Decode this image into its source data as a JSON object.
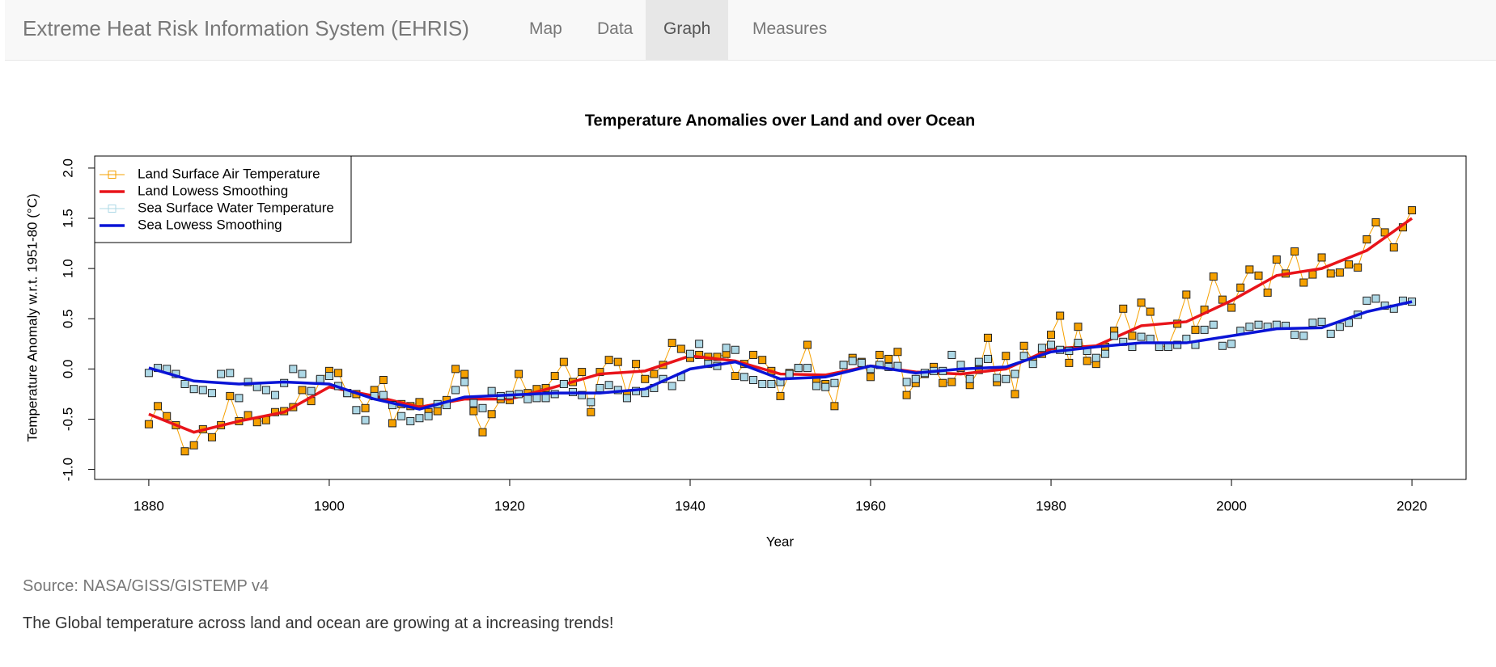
{
  "header": {
    "title": "Extreme Heat Risk Information System (EHRIS)",
    "nav": [
      "Map",
      "Data",
      "Graph",
      "Measures"
    ],
    "active": 2
  },
  "chart_data": {
    "type": "line",
    "title": "Temperature Anomalies over Land and over Ocean",
    "xlabel": "Year",
    "ylabel": "Temperature Anomaly w.r.t. 1951-80 (°C)",
    "xlim": [
      1874,
      2026
    ],
    "ylim": [
      -1.1,
      2.12
    ],
    "xticks": [
      1880,
      1900,
      1920,
      1940,
      1960,
      1980,
      2000,
      2020
    ],
    "yticks": [
      {
        "value": -1,
        "label": "-1.0"
      },
      {
        "value": -0.5,
        "label": "-0.5"
      },
      {
        "value": 0,
        "label": "0.0"
      },
      {
        "value": 0.5,
        "label": "0.5"
      },
      {
        "value": 1,
        "label": "1.0"
      },
      {
        "value": 1.5,
        "label": "1.5"
      },
      {
        "value": 2,
        "label": "2.0"
      }
    ],
    "legend": "top-left",
    "x": [
      1880,
      1881,
      1882,
      1883,
      1884,
      1885,
      1886,
      1887,
      1888,
      1889,
      1890,
      1891,
      1892,
      1893,
      1894,
      1895,
      1896,
      1897,
      1898,
      1899,
      1900,
      1901,
      1902,
      1903,
      1904,
      1905,
      1906,
      1907,
      1908,
      1909,
      1910,
      1911,
      1912,
      1913,
      1914,
      1915,
      1916,
      1917,
      1918,
      1919,
      1920,
      1921,
      1922,
      1923,
      1924,
      1925,
      1926,
      1927,
      1928,
      1929,
      1930,
      1931,
      1932,
      1933,
      1934,
      1935,
      1936,
      1937,
      1938,
      1939,
      1940,
      1941,
      1942,
      1943,
      1944,
      1945,
      1946,
      1947,
      1948,
      1949,
      1950,
      1951,
      1952,
      1953,
      1954,
      1955,
      1956,
      1957,
      1958,
      1959,
      1960,
      1961,
      1962,
      1963,
      1964,
      1965,
      1966,
      1967,
      1968,
      1969,
      1970,
      1971,
      1972,
      1973,
      1974,
      1975,
      1976,
      1977,
      1978,
      1979,
      1980,
      1981,
      1982,
      1983,
      1984,
      1985,
      1986,
      1987,
      1988,
      1989,
      1990,
      1991,
      1992,
      1993,
      1994,
      1995,
      1996,
      1997,
      1998,
      1999,
      2000,
      2001,
      2002,
      2003,
      2004,
      2005,
      2006,
      2007,
      2008,
      2009,
      2010,
      2011,
      2012,
      2013,
      2014,
      2015,
      2016,
      2017,
      2018,
      2019,
      2020
    ],
    "series": [
      {
        "name": "Land Surface Air Temperature",
        "color": "#f5a000",
        "line": true,
        "marker": "square",
        "values": [
          -0.55,
          -0.37,
          -0.47,
          -0.56,
          -0.82,
          -0.76,
          -0.6,
          -0.68,
          -0.56,
          -0.27,
          -0.52,
          -0.46,
          -0.53,
          -0.51,
          -0.43,
          -0.42,
          -0.38,
          -0.21,
          -0.32,
          -0.11,
          -0.02,
          -0.04,
          -0.24,
          -0.25,
          -0.39,
          -0.21,
          -0.11,
          -0.54,
          -0.35,
          -0.37,
          -0.33,
          -0.43,
          -0.42,
          -0.31,
          0.0,
          -0.05,
          -0.42,
          -0.63,
          -0.45,
          -0.3,
          -0.31,
          -0.05,
          -0.24,
          -0.2,
          -0.19,
          -0.07,
          0.07,
          -0.13,
          -0.03,
          -0.43,
          -0.03,
          0.09,
          0.07,
          -0.25,
          0.05,
          -0.1,
          -0.05,
          0.04,
          0.26,
          0.2,
          0.11,
          0.14,
          0.12,
          0.12,
          0.15,
          -0.07,
          0.05,
          0.14,
          0.09,
          -0.02,
          -0.27,
          -0.04,
          0.01,
          0.24,
          -0.1,
          -0.15,
          -0.37,
          0.04,
          0.11,
          0.07,
          -0.08,
          0.14,
          0.1,
          0.17,
          -0.26,
          -0.14,
          -0.05,
          0.02,
          -0.14,
          -0.13,
          0.01,
          -0.16,
          -0.01,
          0.31,
          -0.13,
          0.13,
          -0.25,
          0.23,
          0.08,
          0.15,
          0.34,
          0.53,
          0.06,
          0.42,
          0.08,
          0.05,
          0.22,
          0.38,
          0.6,
          0.33,
          0.66,
          0.57,
          0.22,
          0.23,
          0.45,
          0.74,
          0.39,
          0.59,
          0.92,
          0.69,
          0.61,
          0.81,
          0.99,
          0.93,
          0.76,
          1.09,
          0.95,
          1.17,
          0.86,
          0.94,
          1.11,
          0.95,
          0.96,
          1.04,
          1.01,
          1.29,
          1.46,
          1.36,
          1.21,
          1.41,
          1.58
        ]
      },
      {
        "name": "Land Lowess Smoothing",
        "color": "#e8141a",
        "line": true,
        "marker": null,
        "x": [
          1880,
          1885,
          1890,
          1895,
          1900,
          1905,
          1910,
          1915,
          1920,
          1925,
          1930,
          1935,
          1940,
          1945,
          1950,
          1955,
          1960,
          1965,
          1970,
          1975,
          1980,
          1985,
          1990,
          1995,
          2000,
          2005,
          2010,
          2015,
          2020
        ],
        "values": [
          -0.45,
          -0.63,
          -0.52,
          -0.43,
          -0.18,
          -0.27,
          -0.38,
          -0.3,
          -0.3,
          -0.18,
          -0.05,
          -0.02,
          0.13,
          0.08,
          -0.05,
          -0.06,
          0.03,
          -0.03,
          -0.05,
          0.0,
          0.2,
          0.23,
          0.43,
          0.47,
          0.68,
          0.93,
          1.0,
          1.18,
          1.5
        ]
      },
      {
        "name": "Sea Surface Water Temperature",
        "color": "#add8e6",
        "line": false,
        "marker": "square",
        "values": [
          -0.04,
          0.01,
          0.0,
          -0.05,
          -0.15,
          -0.2,
          -0.21,
          -0.24,
          -0.05,
          -0.04,
          -0.29,
          -0.13,
          -0.18,
          -0.21,
          -0.26,
          -0.14,
          0.0,
          -0.05,
          -0.22,
          -0.1,
          -0.07,
          -0.17,
          -0.24,
          -0.41,
          -0.51,
          -0.27,
          -0.26,
          -0.36,
          -0.47,
          -0.52,
          -0.49,
          -0.47,
          -0.35,
          -0.36,
          -0.21,
          -0.13,
          -0.34,
          -0.39,
          -0.22,
          -0.27,
          -0.26,
          -0.25,
          -0.3,
          -0.29,
          -0.29,
          -0.25,
          -0.15,
          -0.23,
          -0.26,
          -0.33,
          -0.19,
          -0.16,
          -0.21,
          -0.29,
          -0.22,
          -0.24,
          -0.19,
          -0.1,
          -0.17,
          -0.08,
          0.15,
          0.25,
          0.05,
          0.03,
          0.21,
          0.19,
          -0.08,
          -0.11,
          -0.15,
          -0.15,
          -0.13,
          -0.05,
          0.01,
          0.01,
          -0.17,
          -0.18,
          -0.14,
          0.04,
          0.08,
          0.06,
          0.0,
          0.04,
          0.02,
          0.03,
          -0.13,
          -0.1,
          -0.04,
          -0.02,
          -0.02,
          0.14,
          0.04,
          -0.1,
          0.07,
          0.1,
          -0.09,
          -0.1,
          -0.05,
          0.13,
          0.05,
          0.21,
          0.24,
          0.19,
          0.18,
          0.26,
          0.18,
          0.11,
          0.15,
          0.33,
          0.27,
          0.22,
          0.32,
          0.3,
          0.22,
          0.22,
          0.24,
          0.3,
          0.24,
          0.39,
          0.44,
          0.23,
          0.25,
          0.38,
          0.42,
          0.44,
          0.42,
          0.44,
          0.43,
          0.34,
          0.33,
          0.46,
          0.47,
          0.35,
          0.42,
          0.46,
          0.54,
          0.68,
          0.7,
          0.63,
          0.6,
          0.68,
          0.67
        ]
      },
      {
        "name": "Sea Lowess Smoothing",
        "color": "#0a14d6",
        "line": true,
        "marker": null,
        "x": [
          1880,
          1885,
          1890,
          1895,
          1900,
          1905,
          1910,
          1915,
          1920,
          1925,
          1930,
          1935,
          1940,
          1945,
          1950,
          1955,
          1960,
          1965,
          1970,
          1975,
          1980,
          1985,
          1990,
          1995,
          2000,
          2005,
          2010,
          2015,
          2020
        ],
        "values": [
          0.01,
          -0.12,
          -0.15,
          -0.13,
          -0.15,
          -0.3,
          -0.4,
          -0.28,
          -0.26,
          -0.24,
          -0.24,
          -0.2,
          0.0,
          0.07,
          -0.1,
          -0.08,
          0.03,
          -0.04,
          0.0,
          0.02,
          0.17,
          0.22,
          0.26,
          0.26,
          0.33,
          0.4,
          0.41,
          0.57,
          0.67
        ]
      }
    ]
  },
  "footer": {
    "source": "Source: NASA/GISS/GISTEMP v4",
    "note": "The Global temperature across land and ocean are growing at a increasing trends!"
  }
}
